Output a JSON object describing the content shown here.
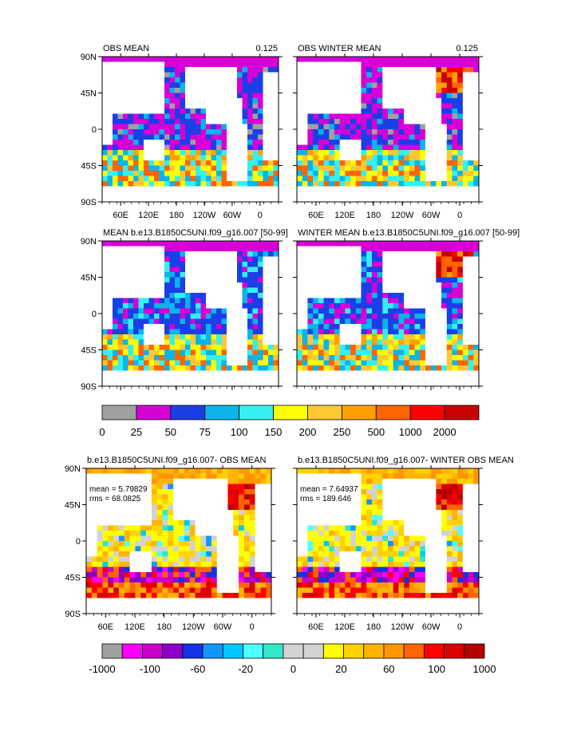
{
  "panels": [
    {
      "title": "OBS MEAN",
      "value": "0.125",
      "x_labels": [
        "60E",
        "120E",
        "180",
        "120W",
        "60W",
        "0"
      ],
      "y_labels": [
        "90N",
        "45N",
        "0",
        "45S",
        "90S"
      ]
    },
    {
      "title": "OBS WINTER MEAN",
      "value": "0.125",
      "x_labels": [
        "60E",
        "120E",
        "180",
        "120W",
        "60W",
        "0"
      ],
      "y_labels": []
    },
    {
      "title": "MEAN b.e13.B1850C5UNI.f09_g16.007 [50-99]",
      "value": "",
      "x_labels": [],
      "y_labels": [
        "90N",
        "45N",
        "0",
        "45S",
        "90S"
      ]
    },
    {
      "title": "WINTER MEAN b.e13.B1850C5UNI.f09_g16.007 [50-99]",
      "value": "",
      "x_labels": [],
      "y_labels": []
    },
    {
      "title": "b.e13.B1850C5UNI.f09_g16.007- OBS MEAN",
      "value": "",
      "x_labels": [
        "60E",
        "120E",
        "180",
        "120W",
        "60W",
        "0"
      ],
      "y_labels": [
        "90N",
        "45N",
        "0",
        "45S",
        "90S"
      ],
      "stats": [
        "mean = 5.79829",
        "rms = 68.0825"
      ]
    },
    {
      "title": "b.e13.B1850C5UNI.f09_g16.007- WINTER OBS MEAN",
      "value": "",
      "x_labels": [
        "60E",
        "120E",
        "180",
        "120W",
        "60W",
        "0"
      ],
      "y_labels": [],
      "stats": [
        "mean = 7.64937",
        "rms = 189.646"
      ]
    }
  ],
  "colorbar1": {
    "colors": [
      "#a0a0a0",
      "#d600d6",
      "#1a3fe6",
      "#0ab4e8",
      "#35f0f0",
      "#ffff00",
      "#ffc832",
      "#ffa000",
      "#ff6400",
      "#ff0000",
      "#c80000"
    ],
    "labels": [
      "0",
      "25",
      "50",
      "75",
      "100",
      "150",
      "200",
      "250",
      "500",
      "1000",
      "2000"
    ]
  },
  "colorbar2": {
    "colors": [
      "#a0a0a0",
      "#ff00ff",
      "#c800c8",
      "#8c00c8",
      "#1432e6",
      "#1496ff",
      "#00c8ff",
      "#50ffff",
      "#32e6c8",
      "#d2d2d2",
      "#d2d2d2",
      "#ffff00",
      "#ffd200",
      "#ffb400",
      "#ff9600",
      "#ff6400",
      "#ff0000",
      "#dc0000",
      "#b40000"
    ],
    "labels": [
      "-1000",
      "-100",
      "-60",
      "-20",
      "0",
      "20",
      "60",
      "100",
      "1000"
    ]
  },
  "chart_data": [
    {
      "type": "heatmap",
      "title": "OBS MEAN",
      "value_label": "0.125",
      "x_ticks": [
        "60E",
        "120E",
        "180",
        "120W",
        "60W",
        "0"
      ],
      "y_ticks": [
        "90N",
        "45N",
        "0",
        "45S",
        "90S"
      ]
    },
    {
      "type": "heatmap",
      "title": "OBS WINTER MEAN",
      "value_label": "0.125",
      "x_ticks": [
        "60E",
        "120E",
        "180",
        "120W",
        "60W",
        "0"
      ]
    },
    {
      "type": "heatmap",
      "title": "MEAN b.e13.B1850C5UNI.f09_g16.007 [50-99]",
      "y_ticks": [
        "90N",
        "45N",
        "0",
        "45S",
        "90S"
      ]
    },
    {
      "type": "heatmap",
      "title": "WINTER MEAN b.e13.B1850C5UNI.f09_g16.007 [50-99]"
    },
    {
      "type": "heatmap",
      "title": "b.e13.B1850C5UNI.f09_g16.007- OBS MEAN",
      "stats": {
        "mean": 5.79829,
        "rms": 68.0825
      },
      "x_ticks": [
        "60E",
        "120E",
        "180",
        "120W",
        "60W",
        "0"
      ],
      "y_ticks": [
        "90N",
        "45N",
        "0",
        "45S",
        "90S"
      ]
    },
    {
      "type": "heatmap",
      "title": "b.e13.B1850C5UNI.f09_g16.007- WINTER OBS MEAN",
      "stats": {
        "mean": 7.64937,
        "rms": 189.646
      },
      "x_ticks": [
        "60E",
        "120E",
        "180",
        "120W",
        "60W",
        "0"
      ]
    }
  ]
}
